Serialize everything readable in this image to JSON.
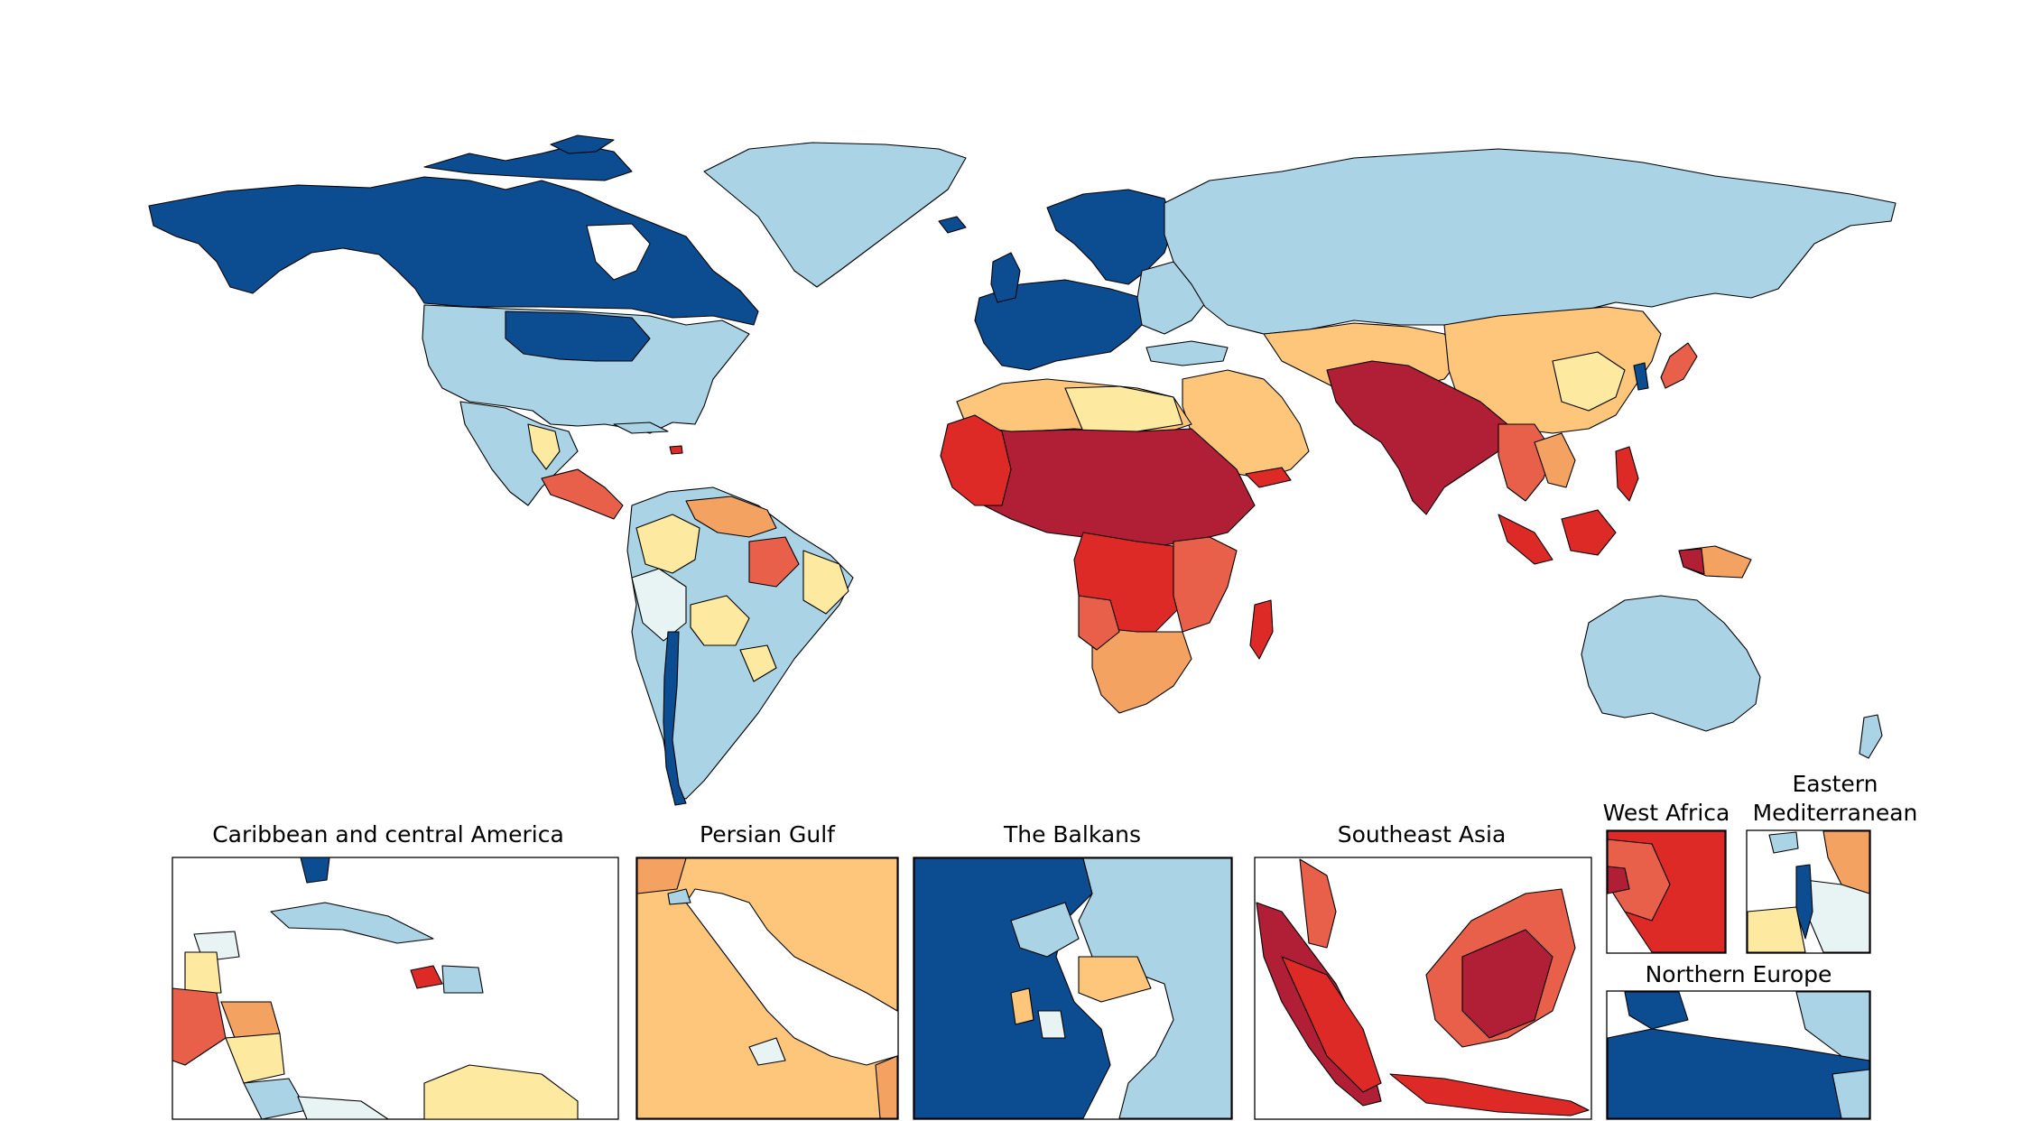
{
  "palette": {
    "dark_blue": "#0c4d92",
    "light_blue": "#abd3e6",
    "very_light_blue": "#e8f4f4",
    "pale_yellow": "#fee9a0",
    "light_orange": "#fdc67a",
    "orange": "#f4a262",
    "red_orange": "#e8604a",
    "red": "#de2a26",
    "dark_red": "#b01f36"
  },
  "inset_titles": {
    "caribbean": "Caribbean and central America",
    "persian_gulf": "Persian Gulf",
    "balkans": "The Balkans",
    "southeast_asia": "Southeast Asia",
    "west_africa": "West Africa",
    "eastern_med_line1": "Eastern",
    "eastern_med_line2": "Mediterranean",
    "northern_europe": "Northern Europe"
  }
}
